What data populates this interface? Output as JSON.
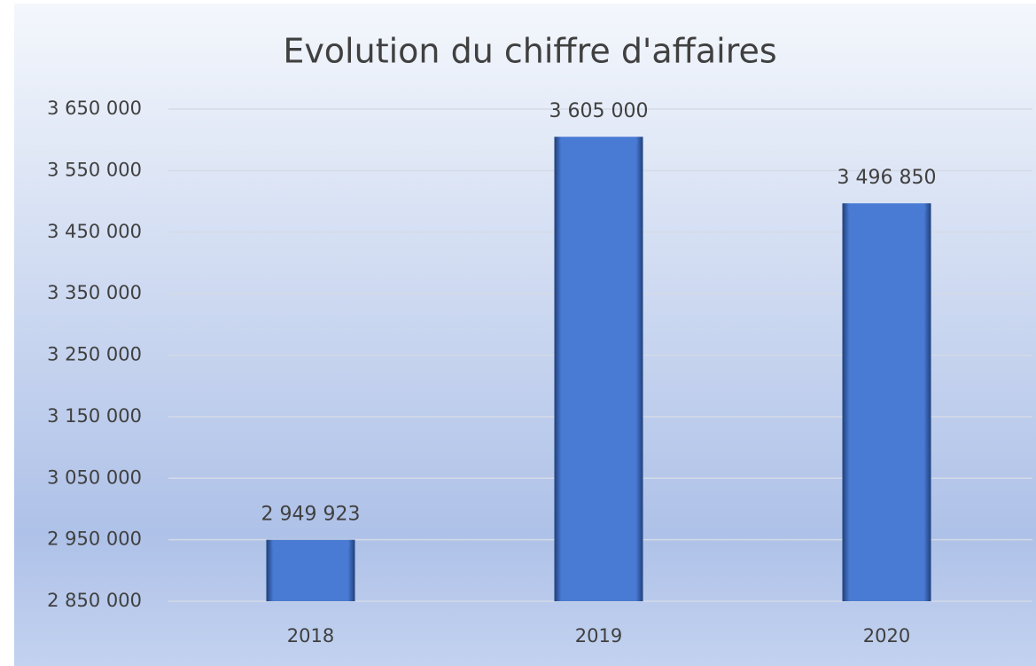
{
  "chart_data": {
    "type": "bar",
    "title": "Evolution du chiffre d'affaires",
    "categories": [
      "2018",
      "2019",
      "2020"
    ],
    "values": [
      2949923,
      3605000,
      3496850
    ],
    "value_labels": [
      "2 949 923",
      "3 605 000",
      "3 496 850"
    ],
    "color": "#4a7bd4",
    "ylim": [
      2850000,
      3650000
    ],
    "yticks": [
      {
        "value": 2850000,
        "label": "2 850 000"
      },
      {
        "value": 2950000,
        "label": "2 950 000"
      },
      {
        "value": 3050000,
        "label": "3 050 000"
      },
      {
        "value": 3150000,
        "label": "3 150 000"
      },
      {
        "value": 3250000,
        "label": "3 250 000"
      },
      {
        "value": 3350000,
        "label": "3 350 000"
      },
      {
        "value": 3450000,
        "label": "3 450 000"
      },
      {
        "value": 3550000,
        "label": "3 550 000"
      },
      {
        "value": 3650000,
        "label": "3 650 000"
      }
    ],
    "grid": true
  }
}
